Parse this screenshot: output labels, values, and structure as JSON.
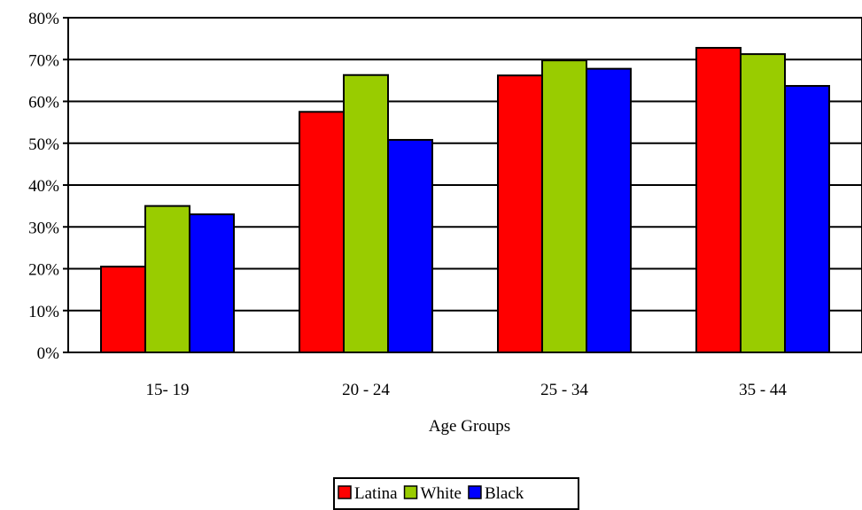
{
  "chart_data": {
    "type": "bar",
    "title": "",
    "xlabel": "Age Groups",
    "ylabel": "",
    "categories": [
      "15- 19",
      "20 - 24",
      "25 - 34",
      "35 - 44"
    ],
    "series": [
      {
        "name": "Latina",
        "color": "#ff0000",
        "values": [
          20.5,
          57.5,
          66.2,
          72.8
        ]
      },
      {
        "name": "White",
        "color": "#99cc00",
        "values": [
          35.0,
          66.3,
          69.8,
          71.3
        ]
      },
      {
        "name": "Black",
        "color": "#0000ff",
        "values": [
          33.0,
          50.8,
          67.8,
          63.7
        ]
      }
    ],
    "ylim": [
      0,
      80
    ],
    "yticks": [
      "0%",
      "10%",
      "20%",
      "30%",
      "40%",
      "50%",
      "60%",
      "70%",
      "80%"
    ],
    "grid": true,
    "legend_position": "bottom-center"
  }
}
